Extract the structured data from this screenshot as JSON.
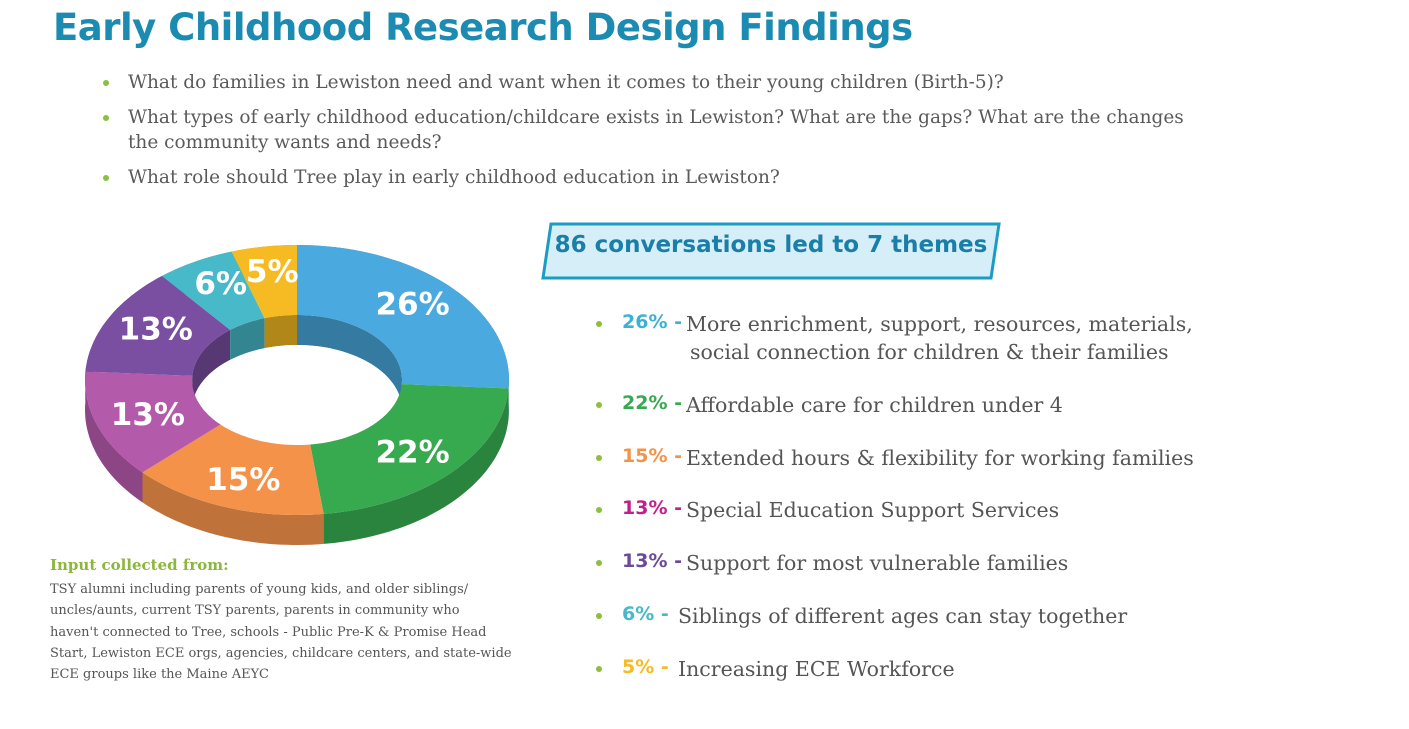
{
  "title": "Early Childhood Research Design Findings",
  "questions": [
    [
      "What do families in Lewiston need and want when it comes to their young children (Birth-5)?"
    ],
    [
      "What types of early childhood education/childcare exists in Lewiston? What are the gaps? What are the changes",
      "the community wants and needs?"
    ],
    [
      "What role should Tree play in early childhood education in Lewiston?"
    ]
  ],
  "chart_data": {
    "type": "pie",
    "donut": true,
    "values": [
      26,
      22,
      15,
      13,
      13,
      6,
      5
    ],
    "value_labels": [
      "26%",
      "22%",
      "15%",
      "13%",
      "13%",
      "6%",
      "5%"
    ],
    "colors": [
      "#4aa9de",
      "#37a94f",
      "#f5924a",
      "#b35aab",
      "#7a4ea0",
      "#47b9c9",
      "#f6bb22"
    ]
  },
  "banner": "86 conversations led to 7 themes",
  "themes": [
    {
      "label": "26% -",
      "color": "#3cb1d4",
      "lines": [
        "More enrichment, support, resources, materials,",
        "social connection for children & their families"
      ]
    },
    {
      "label": "22% -",
      "color": "#37a94f",
      "lines": [
        "Affordable care for children under 4"
      ]
    },
    {
      "label": "15% -",
      "color": "#f5924a",
      "lines": [
        "Extended hours & flexibility for working families"
      ]
    },
    {
      "label": "13% -",
      "color": "#c21f8a",
      "lines": [
        "Special Education Support Services"
      ]
    },
    {
      "label": "13% -",
      "color": "#6a4a9c",
      "lines": [
        "Support for most vulnerable families"
      ]
    },
    {
      "label": "6% -",
      "color": "#47b9c9",
      "lines": [
        "Siblings of different ages can stay together"
      ]
    },
    {
      "label": "5% -",
      "color": "#f6bb22",
      "lines": [
        "Increasing ECE Workforce"
      ]
    }
  ],
  "input": {
    "heading": "Input collected from:",
    "lines": [
      "TSY alumni including parents of young kids, and older siblings/",
      "uncles/aunts, current TSY parents, parents in community who",
      "haven't connected to Tree, schools - Public Pre-K & Promise Head",
      "Start, Lewiston ECE orgs, agencies, childcare centers, and state-wide",
      "ECE groups like the Maine AEYC"
    ]
  }
}
